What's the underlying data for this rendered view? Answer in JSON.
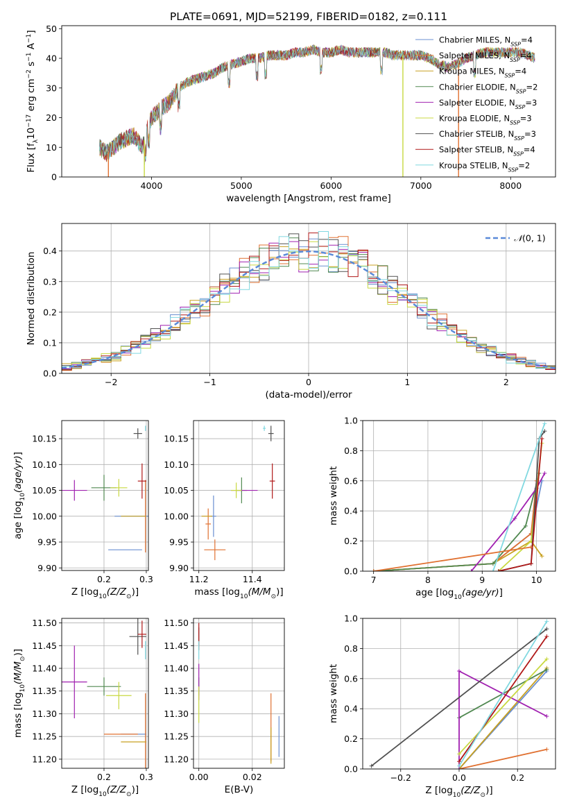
{
  "figure": {
    "title": "PLATE=0691, MJD=52199, FIBERID=0182, z=0.111"
  },
  "colors": {
    "series": [
      "#6a8fd0",
      "#e07030",
      "#c8a020",
      "#508850",
      "#a020b0",
      "#c8d840",
      "#505050",
      "#b01818",
      "#80d8e0"
    ],
    "normal_curve": "#5a8ad8",
    "grid": "#b0b0b0"
  },
  "legend": [
    {
      "label": "Chabrier MILES, N",
      "sub": "SSP",
      "suffix": "=4"
    },
    {
      "label": "Salpeter MILES, N",
      "sub": "SSP",
      "suffix": "=4"
    },
    {
      "label": "Kroupa MILES, N",
      "sub": "SSP",
      "suffix": "=4"
    },
    {
      "label": "Chabrier ELODIE, N",
      "sub": "SSP",
      "suffix": "=2"
    },
    {
      "label": "Salpeter ELODIE, N",
      "sub": "SSP",
      "suffix": "=3"
    },
    {
      "label": "Kroupa ELODIE, N",
      "sub": "SSP",
      "suffix": "=3"
    },
    {
      "label": "Chabrier STELIB, N",
      "sub": "SSP",
      "suffix": "=3"
    },
    {
      "label": "Salpeter STELIB, N",
      "sub": "SSP",
      "suffix": "=4"
    },
    {
      "label": "Kroupa STELIB, N",
      "sub": "SSP",
      "suffix": "=2"
    }
  ],
  "chart_data": [
    {
      "id": "spectrum",
      "type": "line",
      "xlabel": "wavelength [Angstrom, rest frame]",
      "ylabel": "Flux [f",
      "xlim": [
        3000,
        8500
      ],
      "ylim": [
        0,
        51
      ],
      "xticks": [
        4000,
        5000,
        6000,
        7000,
        8000
      ],
      "yticks": [
        0,
        10,
        20,
        30,
        40,
        50
      ],
      "legend_position": "upper-right",
      "continuum": {
        "x": [
          3420,
          3500,
          3650,
          3800,
          3900,
          3950,
          4000,
          4100,
          4200,
          4300,
          4400,
          4500,
          4600,
          4700,
          4800,
          4900,
          5000,
          5100,
          5200,
          5300,
          5400,
          5500,
          5600,
          5700,
          5800,
          5900,
          6000,
          6100,
          6200,
          6300,
          6400,
          6500,
          6600,
          6700,
          6800,
          6900,
          7000,
          7100,
          7200,
          7300,
          7400,
          7500,
          7600,
          7700,
          7800,
          7900,
          8000,
          8100,
          8200,
          8270
        ],
        "y": [
          10,
          8,
          12,
          14,
          10,
          16,
          20,
          23,
          25,
          30,
          32,
          33,
          34,
          35,
          37,
          38,
          39,
          40,
          40,
          41,
          41,
          41,
          42,
          42,
          43,
          42,
          42,
          43,
          42,
          42,
          42,
          42,
          42,
          41,
          41,
          41,
          41,
          40,
          38,
          37,
          38,
          40,
          41,
          42,
          42,
          42,
          42,
          42,
          41,
          40
        ]
      },
      "drops": [
        {
          "series": 1,
          "x": 3520
        },
        {
          "series": 5,
          "x": 3920
        },
        {
          "series": 5,
          "x": 6800
        },
        {
          "series": 1,
          "x": 7420
        }
      ]
    },
    {
      "id": "residual-histogram",
      "type": "line",
      "xlabel": "(data-model)/error",
      "ylabel": "Normed distribution",
      "xlim": [
        -2.5,
        2.5
      ],
      "ylim": [
        0,
        0.49
      ],
      "xticks": [
        -2,
        -1,
        0,
        1,
        2
      ],
      "yticks": [
        0.0,
        0.1,
        0.2,
        0.3,
        0.4
      ],
      "legend": "N(0, 1)",
      "legend_position": "upper-right",
      "bin_width": 0.1,
      "bins_from": -2.5,
      "bins_to": 2.5
    },
    {
      "id": "age-vs-Z",
      "type": "scatter",
      "xlabel": "Z [log",
      "ylabel": "age  [log",
      "xlim": [
        0.1,
        0.305
      ],
      "ylim": [
        9.895,
        10.185
      ],
      "xticks": [
        0.2,
        0.3
      ],
      "yticks": [
        9.9,
        9.95,
        10.0,
        10.05,
        10.1,
        10.15
      ],
      "points": [
        {
          "series": 0,
          "x": 0.265,
          "xerr": 0.04,
          "y": 10.0,
          "yerr": 0.0
        },
        {
          "series": 1,
          "x": 0.298,
          "xerr": 0.0,
          "y": 10.0,
          "yerr": 0.07
        },
        {
          "series": 2,
          "x": 0.27,
          "xerr": 0.03,
          "y": 10.0,
          "yerr": 0.0
        },
        {
          "series": 3,
          "x": 0.2,
          "xerr": 0.03,
          "y": 10.055,
          "yerr": 0.025
        },
        {
          "series": 4,
          "x": 0.13,
          "xerr": 0.03,
          "y": 10.05,
          "yerr": 0.02
        },
        {
          "series": 5,
          "x": 0.235,
          "xerr": 0.02,
          "y": 10.055,
          "yerr": 0.017
        },
        {
          "series": 6,
          "x": 0.28,
          "xerr": 0.01,
          "y": 10.16,
          "yerr": 0.01
        },
        {
          "series": 7,
          "x": 0.29,
          "xerr": 0.01,
          "y": 10.068,
          "yerr": 0.034
        },
        {
          "series": 8,
          "x": 0.298,
          "xerr": 0.0,
          "y": 10.17,
          "yerr": 0.005
        },
        {
          "series": 0,
          "x": 0.25,
          "xerr": 0.04,
          "y": 9.935,
          "yerr": 0.0
        }
      ]
    },
    {
      "id": "age-vs-mass",
      "type": "scatter",
      "xlabel": "mass [log",
      "ylabel": "",
      "xlim": [
        11.18,
        11.52
      ],
      "ylim": [
        9.895,
        10.185
      ],
      "xticks": [
        11.2,
        11.4
      ],
      "yticks": [
        9.9,
        9.95,
        10.0,
        10.05,
        10.1,
        10.15
      ],
      "points": [
        {
          "series": 0,
          "x": 11.255,
          "xerr": 0.01,
          "y": 10.0,
          "yerr": 0.04
        },
        {
          "series": 1,
          "x": 11.235,
          "xerr": 0.01,
          "y": 9.985,
          "yerr": 0.03
        },
        {
          "series": 2,
          "x": 11.23,
          "xerr": 0.02,
          "y": 10.0,
          "yerr": 0.0
        },
        {
          "series": 3,
          "x": 11.36,
          "xerr": 0.02,
          "y": 10.05,
          "yerr": 0.025
        },
        {
          "series": 4,
          "x": 11.37,
          "xerr": 0.05,
          "y": 10.05,
          "yerr": 0.0
        },
        {
          "series": 5,
          "x": 11.34,
          "xerr": 0.02,
          "y": 10.05,
          "yerr": 0.015
        },
        {
          "series": 6,
          "x": 11.47,
          "xerr": 0.01,
          "y": 10.16,
          "yerr": 0.015
        },
        {
          "series": 7,
          "x": 11.475,
          "xerr": 0.01,
          "y": 10.068,
          "yerr": 0.034
        },
        {
          "series": 8,
          "x": 11.445,
          "xerr": 0.005,
          "y": 10.17,
          "yerr": 0.005
        },
        {
          "series": 1,
          "x": 11.26,
          "xerr": 0.04,
          "y": 9.935,
          "yerr": 0.02
        }
      ]
    },
    {
      "id": "massweight-vs-age",
      "type": "line",
      "xlabel": "age  [log",
      "ylabel": "mass weight",
      "xlim": [
        6.8,
        10.35
      ],
      "ylim": [
        0,
        1.0
      ],
      "xticks": [
        7,
        8,
        9,
        10
      ],
      "yticks": [
        0.0,
        0.2,
        0.4,
        0.6,
        0.8,
        1.0
      ],
      "series": [
        {
          "series": 0,
          "x": [
            7.0,
            9.2,
            9.9,
            10.1
          ],
          "y": [
            0.0,
            0.05,
            0.25,
            0.6
          ]
        },
        {
          "series": 1,
          "x": [
            7.0,
            9.2,
            9.9,
            10.0
          ],
          "y": [
            0.0,
            0.05,
            0.25,
            0.6
          ]
        },
        {
          "series": 2,
          "x": [
            7.0,
            9.2,
            9.9,
            10.1
          ],
          "y": [
            0.0,
            0.05,
            0.2,
            0.1
          ]
        },
        {
          "series": 3,
          "x": [
            7.0,
            9.2,
            9.8,
            10.05
          ],
          "y": [
            0.0,
            0.05,
            0.3,
            0.65
          ]
        },
        {
          "series": 4,
          "x": [
            8.8,
            9.6,
            10.0,
            10.15
          ],
          "y": [
            0.0,
            0.35,
            0.55,
            0.65
          ]
        },
        {
          "series": 5,
          "x": [
            9.3,
            9.9,
            10.1
          ],
          "y": [
            0.0,
            0.2,
            0.85
          ]
        },
        {
          "series": 6,
          "x": [
            9.3,
            9.9,
            10.05,
            10.15
          ],
          "y": [
            0.0,
            0.05,
            0.88,
            0.93
          ]
        },
        {
          "series": 7,
          "x": [
            9.3,
            9.9,
            10.1
          ],
          "y": [
            0.0,
            0.05,
            0.88
          ]
        },
        {
          "series": 8,
          "x": [
            9.2,
            10.15
          ],
          "y": [
            0.0,
            0.98
          ]
        },
        {
          "series": 1,
          "x": [
            7.0,
            9.9
          ],
          "y": [
            0.0,
            0.16
          ]
        }
      ]
    },
    {
      "id": "mass-vs-Z",
      "type": "scatter",
      "xlabel": "Z [log",
      "ylabel": "mass [log",
      "xlim": [
        0.1,
        0.305
      ],
      "ylim": [
        11.18,
        11.51
      ],
      "xticks": [
        0.2,
        0.3
      ],
      "yticks": [
        11.2,
        11.25,
        11.3,
        11.35,
        11.4,
        11.45,
        11.5
      ],
      "points": [
        {
          "series": 0,
          "x": 0.27,
          "xerr": 0.03,
          "y": 11.255,
          "yerr": 0.0
        },
        {
          "series": 1,
          "x": 0.298,
          "xerr": 0.0,
          "y": 11.255,
          "yerr": 0.09
        },
        {
          "series": 2,
          "x": 0.27,
          "xerr": 0.03,
          "y": 11.238,
          "yerr": 0.0
        },
        {
          "series": 3,
          "x": 0.2,
          "xerr": 0.04,
          "y": 11.36,
          "yerr": 0.02
        },
        {
          "series": 4,
          "x": 0.13,
          "xerr": 0.03,
          "y": 11.37,
          "yerr": 0.08
        },
        {
          "series": 5,
          "x": 0.235,
          "xerr": 0.03,
          "y": 11.34,
          "yerr": 0.03
        },
        {
          "series": 6,
          "x": 0.28,
          "xerr": 0.02,
          "y": 11.47,
          "yerr": 0.04
        },
        {
          "series": 7,
          "x": 0.29,
          "xerr": 0.01,
          "y": 11.475,
          "yerr": 0.03
        },
        {
          "series": 8,
          "x": 0.298,
          "xerr": 0.0,
          "y": 11.44,
          "yerr": 0.02
        },
        {
          "series": 1,
          "x": 0.24,
          "xerr": 0.04,
          "y": 11.255,
          "yerr": 0.0
        }
      ]
    },
    {
      "id": "mass-vs-EBV",
      "type": "scatter",
      "xlabel": "E(B-V)",
      "ylabel": "",
      "xlim": [
        -0.002,
        0.032
      ],
      "ylim": [
        11.18,
        11.51
      ],
      "xticks": [
        0.0,
        0.02
      ],
      "yticks": [
        11.2,
        11.25,
        11.3,
        11.35,
        11.4,
        11.45,
        11.5
      ],
      "points": [
        {
          "series": 0,
          "x": 0.03,
          "xerr": 0.0,
          "y": 11.25,
          "yerr": 0.045
        },
        {
          "series": 1,
          "x": 0.027,
          "xerr": 0.0,
          "y": 11.27,
          "yerr": 0.075
        },
        {
          "series": 2,
          "x": 0.027,
          "xerr": 0.0,
          "y": 11.23,
          "yerr": 0.04
        },
        {
          "series": 3,
          "x": 0.0,
          "xerr": 0.0,
          "y": 11.36,
          "yerr": 0.02
        },
        {
          "series": 4,
          "x": 0.0,
          "xerr": 0.0,
          "y": 11.37,
          "yerr": 0.04
        },
        {
          "series": 5,
          "x": 0.0,
          "xerr": 0.0,
          "y": 11.32,
          "yerr": 0.04
        },
        {
          "series": 6,
          "x": 0.0,
          "xerr": 0.0,
          "y": 11.47,
          "yerr": 0.02
        },
        {
          "series": 7,
          "x": 0.0,
          "xerr": 0.0,
          "y": 11.47,
          "yerr": 0.03
        },
        {
          "series": 8,
          "x": 0.0,
          "xerr": 0.0,
          "y": 11.44,
          "yerr": 0.02
        }
      ]
    },
    {
      "id": "massweight-vs-Z",
      "type": "line",
      "xlabel": "Z [log",
      "ylabel": "mass weight",
      "xlim": [
        -0.33,
        0.33
      ],
      "ylim": [
        0,
        1.0
      ],
      "xticks": [
        -0.2,
        0.0,
        0.2
      ],
      "yticks": [
        0.0,
        0.2,
        0.4,
        0.6,
        0.8,
        1.0
      ],
      "series": [
        {
          "series": 0,
          "x": [
            0.0,
            0.3
          ],
          "y": [
            0.0,
            0.65
          ]
        },
        {
          "series": 1,
          "x": [
            0.0,
            0.3
          ],
          "y": [
            0.0,
            0.13
          ]
        },
        {
          "series": 2,
          "x": [
            0.0,
            0.3
          ],
          "y": [
            0.0,
            0.67
          ]
        },
        {
          "series": 3,
          "x": [
            0.0,
            0.3
          ],
          "y": [
            0.34,
            0.66
          ]
        },
        {
          "series": 4,
          "x": [
            0.0,
            0.0,
            0.3
          ],
          "y": [
            0.0,
            0.65,
            0.35
          ]
        },
        {
          "series": 5,
          "x": [
            0.0,
            0.3
          ],
          "y": [
            0.1,
            0.73
          ]
        },
        {
          "series": 6,
          "x": [
            -0.3,
            0.3
          ],
          "y": [
            0.02,
            0.93
          ]
        },
        {
          "series": 7,
          "x": [
            0.0,
            0.3
          ],
          "y": [
            0.05,
            0.88
          ]
        },
        {
          "series": 8,
          "x": [
            0.0,
            0.3
          ],
          "y": [
            0.02,
            0.98
          ]
        }
      ]
    }
  ]
}
